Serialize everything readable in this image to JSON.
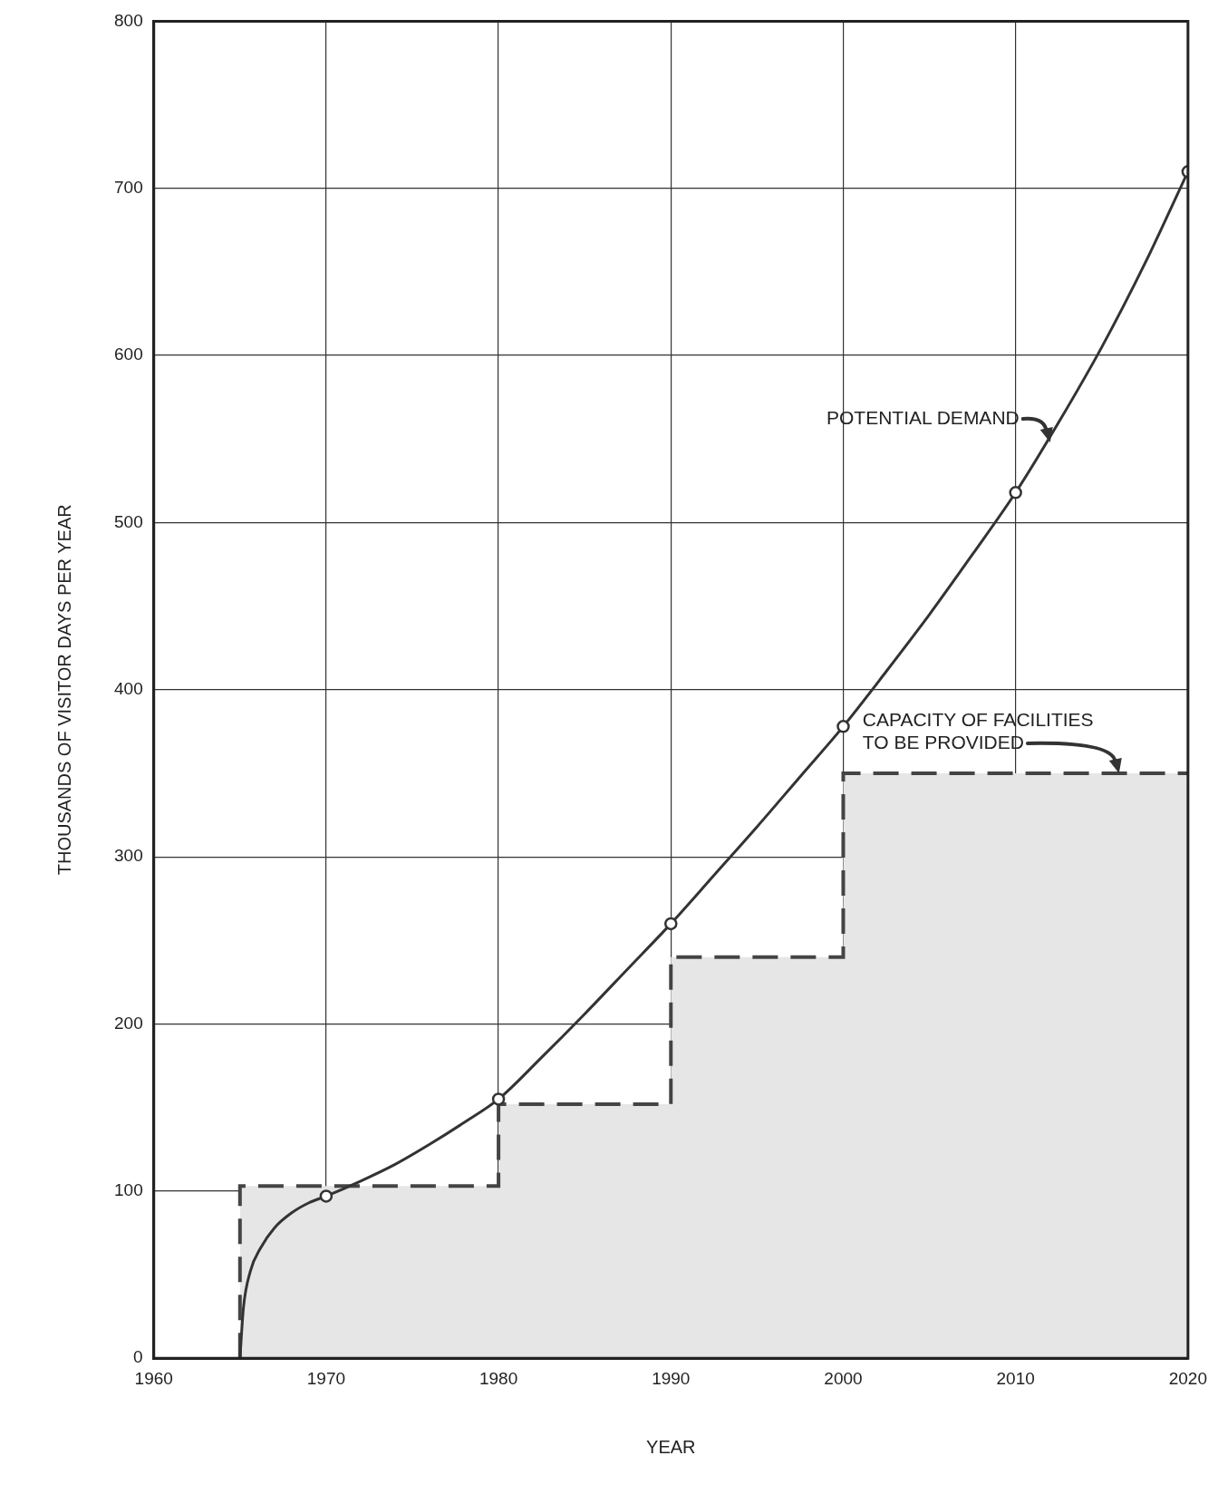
{
  "chart_data": {
    "type": "line",
    "xlabel": "YEAR",
    "ylabel": "THOUSANDS OF VISITOR DAYS PER YEAR",
    "xlim": [
      1960,
      2020
    ],
    "xticks": [
      1960,
      1970,
      1980,
      1990,
      2000,
      2010,
      2020
    ],
    "ylim": [
      0,
      800
    ],
    "yticks": [
      0,
      100,
      200,
      300,
      400,
      500,
      600,
      700,
      800
    ],
    "grid": true,
    "legend": false,
    "series": [
      {
        "type": "step",
        "color": "#444444",
        "line_style": "dashed",
        "marker": "none",
        "x": [
          1965,
          1965,
          1980,
          1990,
          2000,
          2020
        ],
        "values": [
          0,
          103,
          152,
          240,
          350,
          350
        ]
      },
      {
        "type": "line",
        "color": "#333333",
        "line_style": "solid",
        "marker": "none",
        "x": [
          1965,
          1965.2,
          1965.6,
          1966.2,
          1967,
          1968,
          1969,
          1970,
          1972,
          1974,
          1976,
          1978,
          1980,
          1982.5,
          1985,
          1987.5,
          1990,
          1992.5,
          1995,
          1997.5,
          2000,
          2002.5,
          2005,
          2007.5,
          2010,
          2012.5,
          2015,
          2017.5,
          2020
        ],
        "values": [
          0,
          30,
          52,
          66,
          78,
          87,
          93,
          97,
          106,
          116,
          128,
          141,
          155,
          180,
          206,
          233,
          260,
          289,
          318,
          348,
          378,
          411,
          445,
          481,
          518,
          560,
          605,
          655,
          710
        ]
      },
      {
        "type": "scatter",
        "color": "#333333",
        "marker": "circle",
        "x": [
          1970,
          1980,
          1990,
          2000,
          2010,
          2020
        ],
        "values": [
          97,
          155,
          260,
          378,
          518,
          710
        ]
      }
    ],
    "annotations": [
      {
        "text": "POTENTIAL DEMAND",
        "x": 2012,
        "y": 548
      },
      {
        "text": "CAPACITY OF FACILITIES\nTO BE PROVIDED",
        "x": 2016,
        "y": 350
      }
    ]
  }
}
